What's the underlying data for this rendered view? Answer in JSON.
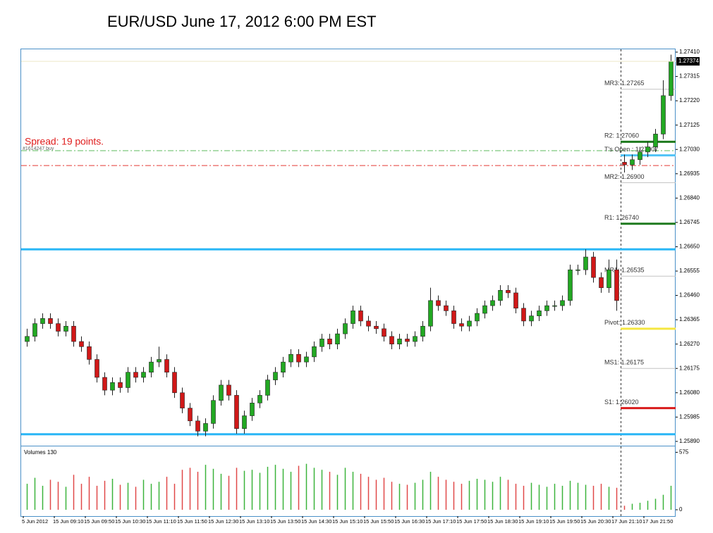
{
  "chart_data": {
    "type": "candlestick",
    "title": "EUR/USD June 17, 2012 6:00 PM EST",
    "spread_text": "Spread: 19 points.",
    "order_text": "#1614247 buy",
    "categories": [
      "5 Jun 2012",
      null,
      null,
      null,
      "15 Jun 09:10",
      null,
      null,
      null,
      "15 Jun 09:50",
      null,
      null,
      null,
      "15 Jun 10:30",
      null,
      null,
      null,
      "15 Jun 11:10",
      null,
      null,
      null,
      "15 Jun 11:50",
      null,
      null,
      null,
      "15 Jun 12:30",
      null,
      null,
      null,
      "15 Jun 13:10",
      null,
      null,
      null,
      "15 Jun 13:50",
      null,
      null,
      null,
      "15 Jun 14:30",
      null,
      null,
      null,
      "15 Jun 15:10",
      null,
      null,
      null,
      "15 Jun 15:50",
      null,
      null,
      null,
      "15 Jun 16:30",
      null,
      null,
      null,
      "15 Jun 17:10",
      null,
      null,
      null,
      "15 Jun 17:50",
      null,
      null,
      null,
      "15 Jun 18:30",
      null,
      null,
      null,
      "15 Jun 19:10",
      null,
      null,
      null,
      "15 Jun 19:50",
      null,
      null,
      null,
      "15 Jun 20:30",
      null,
      null,
      null,
      "17 Jun 21:10",
      null,
      null,
      null,
      "17 Jun 21:50",
      null,
      null,
      null
    ],
    "ohlc": [
      [
        1.2628,
        1.2633,
        1.2626,
        1.263
      ],
      [
        1.263,
        1.2637,
        1.2628,
        1.2635
      ],
      [
        1.2635,
        1.2639,
        1.2633,
        1.2637
      ],
      [
        1.2637,
        1.2639,
        1.2633,
        1.2635
      ],
      [
        1.2635,
        1.2637,
        1.263,
        1.2632
      ],
      [
        1.2632,
        1.2636,
        1.263,
        1.2634
      ],
      [
        1.2634,
        1.2636,
        1.2626,
        1.2628
      ],
      [
        1.2628,
        1.263,
        1.2624,
        1.2626
      ],
      [
        1.2626,
        1.2628,
        1.2619,
        1.2621
      ],
      [
        1.2621,
        1.2623,
        1.2612,
        1.2614
      ],
      [
        1.2614,
        1.2616,
        1.2607,
        1.2609
      ],
      [
        1.2609,
        1.2614,
        1.2607,
        1.2612
      ],
      [
        1.2612,
        1.2614,
        1.2608,
        1.261
      ],
      [
        1.261,
        1.2618,
        1.2608,
        1.2616
      ],
      [
        1.2616,
        1.2618,
        1.2612,
        1.2614
      ],
      [
        1.2614,
        1.2618,
        1.2612,
        1.2616
      ],
      [
        1.2616,
        1.2622,
        1.2614,
        1.262
      ],
      [
        1.262,
        1.2626,
        1.2618,
        1.2621
      ],
      [
        1.2621,
        1.2623,
        1.2614,
        1.2616
      ],
      [
        1.2616,
        1.2618,
        1.2606,
        1.2608
      ],
      [
        1.2608,
        1.261,
        1.26,
        1.2602
      ],
      [
        1.2602,
        1.2604,
        1.2595,
        1.2597
      ],
      [
        1.2597,
        1.2599,
        1.2591,
        1.2593
      ],
      [
        1.2593,
        1.2598,
        1.2591,
        1.2596
      ],
      [
        1.2596,
        1.2607,
        1.2594,
        1.2605
      ],
      [
        1.2605,
        1.2613,
        1.2603,
        1.2611
      ],
      [
        1.2611,
        1.2613,
        1.2605,
        1.2607
      ],
      [
        1.2607,
        1.2609,
        1.2592,
        1.2594
      ],
      [
        1.2594,
        1.2601,
        1.2592,
        1.2599
      ],
      [
        1.2599,
        1.2606,
        1.2597,
        1.2604
      ],
      [
        1.2604,
        1.2609,
        1.2602,
        1.2607
      ],
      [
        1.2607,
        1.2615,
        1.2605,
        1.2613
      ],
      [
        1.2613,
        1.2618,
        1.2611,
        1.2616
      ],
      [
        1.2616,
        1.2622,
        1.2614,
        1.262
      ],
      [
        1.262,
        1.2625,
        1.2618,
        1.2623
      ],
      [
        1.2623,
        1.2625,
        1.2618,
        1.262
      ],
      [
        1.262,
        1.2624,
        1.2618,
        1.2622
      ],
      [
        1.2622,
        1.2628,
        1.262,
        1.2626
      ],
      [
        1.2626,
        1.2631,
        1.2624,
        1.2629
      ],
      [
        1.2629,
        1.2631,
        1.2625,
        1.2627
      ],
      [
        1.2627,
        1.2633,
        1.2625,
        1.2631
      ],
      [
        1.2631,
        1.2637,
        1.2629,
        1.2635
      ],
      [
        1.2635,
        1.2642,
        1.2633,
        1.264
      ],
      [
        1.264,
        1.2642,
        1.2634,
        1.2636
      ],
      [
        1.2636,
        1.2638,
        1.2632,
        1.2634
      ],
      [
        1.2634,
        1.2636,
        1.2631,
        1.2633
      ],
      [
        1.2633,
        1.2635,
        1.2628,
        1.263
      ],
      [
        1.263,
        1.2632,
        1.2625,
        1.2627
      ],
      [
        1.2627,
        1.2631,
        1.2625,
        1.2629
      ],
      [
        1.2629,
        1.2631,
        1.2626,
        1.2628
      ],
      [
        1.2628,
        1.2632,
        1.2626,
        1.263
      ],
      [
        1.263,
        1.2636,
        1.2628,
        1.2634
      ],
      [
        1.2634,
        1.2649,
        1.2632,
        1.2644
      ],
      [
        1.2644,
        1.2646,
        1.264,
        1.2642
      ],
      [
        1.2642,
        1.2644,
        1.2638,
        1.264
      ],
      [
        1.264,
        1.2642,
        1.2633,
        1.2635
      ],
      [
        1.2635,
        1.2637,
        1.2632,
        1.2634
      ],
      [
        1.2634,
        1.2638,
        1.2632,
        1.2636
      ],
      [
        1.2636,
        1.2641,
        1.2634,
        1.2639
      ],
      [
        1.2639,
        1.2644,
        1.2637,
        1.2642
      ],
      [
        1.2642,
        1.2646,
        1.264,
        1.2644
      ],
      [
        1.2644,
        1.265,
        1.2642,
        1.2648
      ],
      [
        1.2648,
        1.265,
        1.2645,
        1.2647
      ],
      [
        1.2647,
        1.2649,
        1.2639,
        1.2641
      ],
      [
        1.2641,
        1.2643,
        1.2634,
        1.2636
      ],
      [
        1.2636,
        1.264,
        1.2634,
        1.2638
      ],
      [
        1.2638,
        1.2642,
        1.2636,
        1.264
      ],
      [
        1.264,
        1.2644,
        1.2638,
        1.2642
      ],
      [
        1.2642,
        1.2644,
        1.264,
        1.2642
      ],
      [
        1.2642,
        1.2646,
        1.264,
        1.2644
      ],
      [
        1.2644,
        1.2658,
        1.2642,
        1.2656
      ],
      [
        1.2656,
        1.2658,
        1.2654,
        1.2656
      ],
      [
        1.2656,
        1.2664,
        1.2654,
        1.2661
      ],
      [
        1.2661,
        1.2663,
        1.2651,
        1.2653
      ],
      [
        1.2653,
        1.2655,
        1.2647,
        1.2649
      ],
      [
        1.2649,
        1.266,
        1.2647,
        1.2656
      ],
      [
        1.2656,
        1.266,
        1.264,
        1.2644
      ],
      [
        1.2698,
        1.2701,
        1.2694,
        1.2697
      ],
      [
        1.2697,
        1.2701,
        1.2695,
        1.2699
      ],
      [
        1.2699,
        1.2704,
        1.2697,
        1.2702
      ],
      [
        1.2702,
        1.2706,
        1.27,
        1.2704
      ],
      [
        1.2704,
        1.2711,
        1.2702,
        1.2709
      ],
      [
        1.2709,
        1.273,
        1.2707,
        1.2724
      ],
      [
        1.2724,
        1.274,
        1.2722,
        1.27374
      ]
    ],
    "up_color": "#22a822",
    "down_color": "#d01818",
    "ylim": [
      1.25876,
      1.27421
    ],
    "yticks": [
      {
        "value": 1.2741,
        "label": "1.27410"
      },
      {
        "value": 1.27315,
        "label": "1.27315"
      },
      {
        "value": 1.2722,
        "label": "1.27220"
      },
      {
        "value": 1.27125,
        "label": "1.27125"
      },
      {
        "value": 1.2703,
        "label": "1.27030"
      },
      {
        "value": 1.26935,
        "label": "1.26935"
      },
      {
        "value": 1.2684,
        "label": "1.26840"
      },
      {
        "value": 1.26745,
        "label": "1.26745"
      },
      {
        "value": 1.2665,
        "label": "1.26650"
      },
      {
        "value": 1.26555,
        "label": "1.26555"
      },
      {
        "value": 1.2646,
        "label": "1.26460"
      },
      {
        "value": 1.26365,
        "label": "1.26365"
      },
      {
        "value": 1.2627,
        "label": "1.26270"
      },
      {
        "value": 1.26175,
        "label": "1.26175"
      },
      {
        "value": 1.2608,
        "label": "1.26080"
      },
      {
        "value": 1.25985,
        "label": "1.25985"
      },
      {
        "value": 1.2589,
        "label": "1.25890"
      }
    ],
    "current_price": 1.27374,
    "hlines": [
      {
        "value": 1.2664,
        "color": "#29b6f6",
        "style": "solid"
      },
      {
        "value": 1.25918,
        "color": "#29b6f6",
        "style": "solid"
      },
      {
        "value": 1.27025,
        "color": "#5cb85c",
        "style": "dashdot"
      },
      {
        "value": 1.26967,
        "color": "#e53935",
        "style": "dashdot"
      }
    ],
    "levels": [
      {
        "label": "MR3: 1.27265",
        "value": 1.27265,
        "color": "#c4c4c4"
      },
      {
        "label": "R2: 1.27060",
        "value": 1.2706,
        "color": "#1e7a1e"
      },
      {
        "label": "T's Open : 1.27007",
        "value": 1.27007,
        "color": "#4fc3f7"
      },
      {
        "label": "MR2: 1.26900",
        "value": 1.269,
        "color": "#c4c4c4"
      },
      {
        "label": "R1: 1.26740",
        "value": 1.2674,
        "color": "#1e7a1e"
      },
      {
        "label": "MR1: 1.26535",
        "value": 1.26535,
        "color": "#c4c4c4"
      },
      {
        "label": "Pivot: 1.26330",
        "value": 1.2633,
        "color": "#f5e642"
      },
      {
        "label": "MS1: 1.26175",
        "value": 1.26175,
        "color": "#c4c4c4"
      },
      {
        "label": "S1: 1.26020",
        "value": 1.2602,
        "color": "#d81b1b"
      }
    ],
    "volume_title": "Volumes 130",
    "volumes": [
      260,
      320,
      240,
      300,
      280,
      230,
      350,
      260,
      330,
      240,
      290,
      310,
      250,
      270,
      230,
      300,
      260,
      280,
      330,
      260,
      400,
      420,
      380,
      450,
      410,
      360,
      340,
      420,
      390,
      400,
      370,
      430,
      450,
      410,
      380,
      440,
      460,
      420,
      400,
      380,
      350,
      420,
      380,
      360,
      330,
      300,
      320,
      280,
      260,
      250,
      270,
      300,
      380,
      330,
      300,
      280,
      260,
      290,
      310,
      300,
      280,
      330,
      300,
      260,
      240,
      270,
      250,
      230,
      260,
      240,
      290,
      270,
      250,
      240,
      260,
      230,
      220,
      40,
      60,
      70,
      90,
      110,
      150,
      240
    ],
    "vylim": [
      0,
      620
    ],
    "vyticks": [
      0,
      575
    ]
  }
}
